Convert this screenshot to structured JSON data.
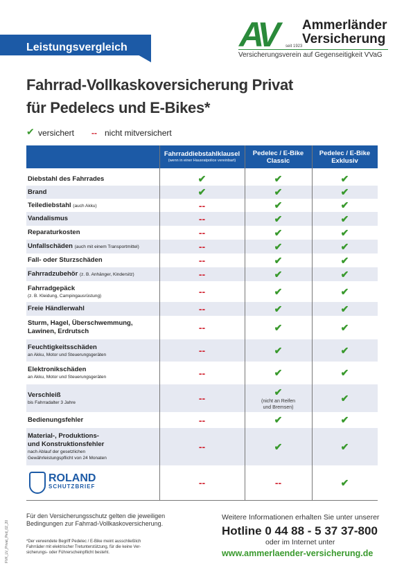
{
  "header": {
    "badge": "Leistungsvergleich",
    "logo_mark": "AV",
    "logo_since": "seit 1923",
    "company_line1": "Ammerländer",
    "company_line2": "Versicherung",
    "company_sub": "Versicherungsverein auf Gegenseitigkeit VVaG"
  },
  "title": {
    "line1": "Fahrrad-Vollkaskoversicherung Privat",
    "line2": "für Pedelecs und E-Bikes*"
  },
  "legend": {
    "insured_symbol": "✔",
    "insured": "versichert",
    "not_insured_symbol": "--",
    "not_insured": "nicht mitversichert"
  },
  "table": {
    "columns": [
      {
        "title": "Fahrraddiebstahlklausel",
        "note": "(wenn in einer Hausratpolice vereinbart)"
      },
      {
        "title": "Pedelec / E-Bike\nClassic"
      },
      {
        "title": "Pedelec / E-Bike\nExklusiv"
      }
    ],
    "rows": [
      {
        "label": "Diebstahl des Fahrrades",
        "cells": [
          "✔",
          "✔",
          "✔"
        ]
      },
      {
        "label": "Brand",
        "cells": [
          "✔",
          "✔",
          "✔"
        ]
      },
      {
        "label": "Teilediebstahl",
        "note_inline": "(auch Akku)",
        "cells": [
          "--",
          "✔",
          "✔"
        ]
      },
      {
        "label": "Vandalismus",
        "cells": [
          "--",
          "✔",
          "✔"
        ]
      },
      {
        "label": "Reparaturkosten",
        "cells": [
          "--",
          "✔",
          "✔"
        ]
      },
      {
        "label": "Unfallschäden",
        "note_inline": "(auch mit einem Transportmittel)",
        "cells": [
          "--",
          "✔",
          "✔"
        ]
      },
      {
        "label": "Fall- oder Sturzschäden",
        "cells": [
          "--",
          "✔",
          "✔"
        ]
      },
      {
        "label": "Fahrradzubehör",
        "note_inline": "(z. B. Anhänger, Kindersitz)",
        "cells": [
          "--",
          "✔",
          "✔"
        ]
      },
      {
        "label": "Fahrradgepäck",
        "note": "(z. B. Kleidung, Campingausrüstung)",
        "cells": [
          "--",
          "✔",
          "✔"
        ]
      },
      {
        "label": "Freie Händlerwahl",
        "cells": [
          "--",
          "✔",
          "✔"
        ]
      },
      {
        "label": "Sturm, Hagel, Überschwemmung,\nLawinen, Erdrutsch",
        "cells": [
          "--",
          "✔",
          "✔"
        ]
      },
      {
        "label": "Feuchtigkeitsschäden",
        "note": "an Akku, Motor und Steuerungsgeräten",
        "cells": [
          "--",
          "✔",
          "✔"
        ]
      },
      {
        "label": "Elektronikschäden",
        "note": "an Akku, Motor und Steuerungsgeräten",
        "cells": [
          "--",
          "✔",
          "✔"
        ]
      },
      {
        "label": "Verschleiß",
        "note": "bis Fahrradalter 3 Jahre",
        "cells": [
          "--",
          {
            "mark": "✔",
            "note": "(nicht an Reifen\nund Bremsen)"
          },
          "✔"
        ]
      },
      {
        "label": "Bedienungsfehler",
        "cells": [
          "--",
          "✔",
          "✔"
        ]
      },
      {
        "label": "Material-, Produktions-\nund Konstruktionsfehler",
        "note": "nach Ablauf der gesetzlichen\nGewährleistungspflicht von 24 Monaten",
        "cells": [
          "--",
          "✔",
          "✔"
        ]
      },
      {
        "logo_name": "ROLAND",
        "logo_sub": "SCHUTZBRIEF",
        "cells": [
          "--",
          "--",
          "✔"
        ]
      }
    ]
  },
  "footer": {
    "conditions": "Für den Versicherungsschutz gelten die jeweiligen\nBedingungen zur Fahrrad-Vollkaskoversicherung.",
    "footnote": "*Der verwendete Begriff Pedelec / E-Bike meint ausschließlich\nFahrräder mit elektrischer Tretunterstützung, für die keine Ver-\nsicherungs- oder Führerscheinpflicht besteht.",
    "info": "Weitere Informationen erhalten Sie unter unserer",
    "hotline": "Hotline 0 44 88 - 5 37 37-800",
    "internet": "oder im Internet unter",
    "url": "www.ammerlaender-versicherung.de",
    "code": "FVK_LV_Privat_Ped_02_20"
  }
}
